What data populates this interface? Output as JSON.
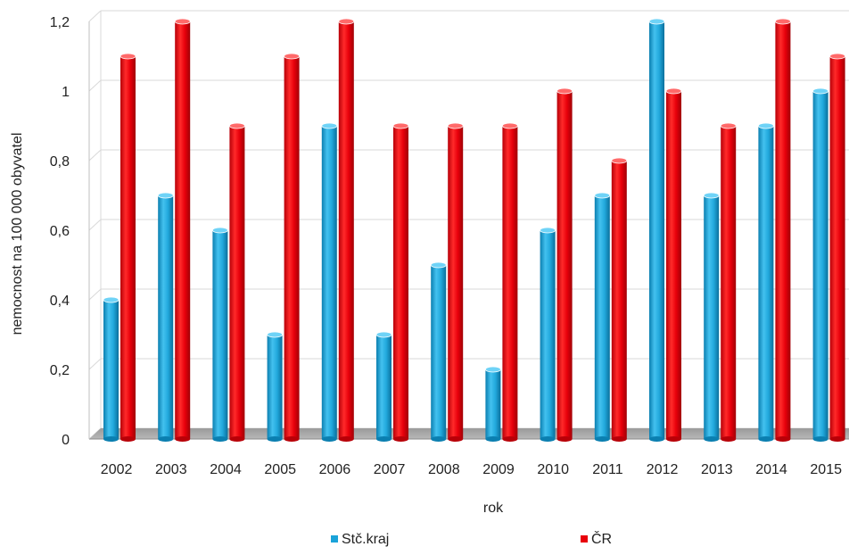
{
  "chart_data": {
    "type": "bar",
    "title": "",
    "xlabel": "rok",
    "ylabel": "nemocnost na 100 000 obyvatel",
    "categories": [
      "2002",
      "2003",
      "2004",
      "2005",
      "2006",
      "2007",
      "2008",
      "2009",
      "2010",
      "2011",
      "2012",
      "2013",
      "2014",
      "2015"
    ],
    "series": [
      {
        "name": "Stč.kraj",
        "color": "#1aa3d9",
        "values": [
          0.4,
          0.7,
          0.6,
          0.3,
          0.9,
          0.3,
          0.5,
          0.2,
          0.6,
          0.7,
          1.2,
          0.7,
          0.9,
          1.0
        ]
      },
      {
        "name": "ČR",
        "color": "#e8000b",
        "values": [
          1.1,
          1.2,
          0.9,
          1.1,
          1.2,
          0.9,
          0.9,
          0.9,
          1.0,
          0.8,
          1.0,
          0.9,
          1.2,
          1.1
        ]
      }
    ],
    "ylim": [
      0,
      1.2
    ],
    "yticks": [
      0,
      0.2,
      0.4,
      0.6,
      0.8,
      1,
      1.2
    ],
    "ytick_labels": [
      "0",
      "0,2",
      "0,4",
      "0,6",
      "0,8",
      "1",
      "1,2"
    ],
    "grid": true,
    "legend_position": "bottom",
    "style": "3d-cylinder"
  }
}
